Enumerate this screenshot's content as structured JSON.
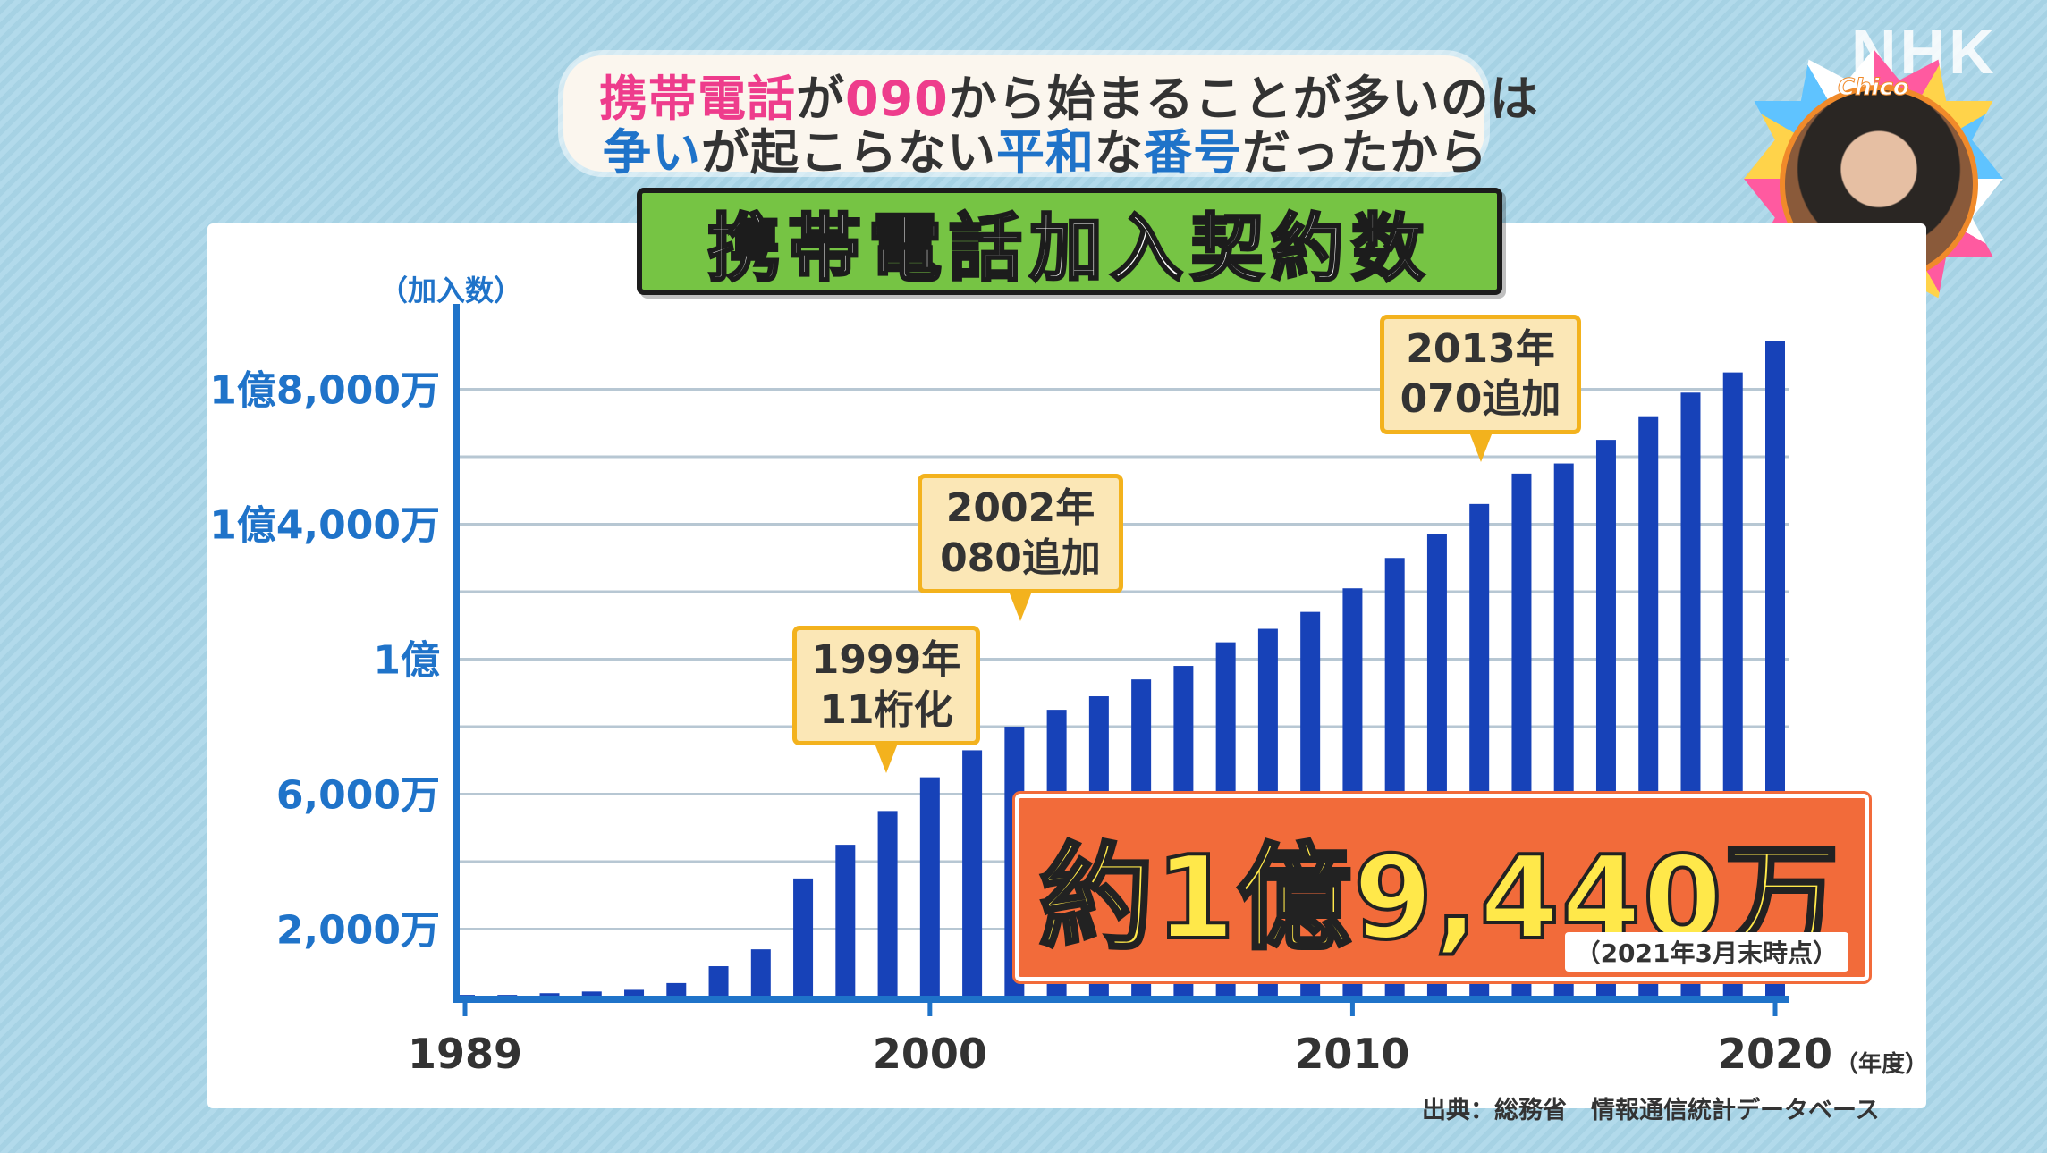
{
  "headline": {
    "line1": [
      {
        "text": "携帯電話",
        "color": "pink"
      },
      {
        "text": "が",
        "color": "dark"
      },
      {
        "text": "090",
        "color": "pink"
      },
      {
        "text": "から始まることが多いのは",
        "color": "dark"
      }
    ],
    "line2": [
      {
        "text": "争い",
        "color": "blue"
      },
      {
        "text": "が起こらない",
        "color": "dark"
      },
      {
        "text": "平和",
        "color": "blue"
      },
      {
        "text": "な",
        "color": "dark"
      },
      {
        "text": "番号",
        "color": "blue"
      },
      {
        "text": "だったから",
        "color": "dark"
      }
    ]
  },
  "broadcaster_logo": "NHK",
  "presenter_name": "Chico",
  "chart_data": {
    "type": "bar",
    "title": "携帯電話加入契約数",
    "ylabel": "（加入数）",
    "xunit": "（年度）",
    "x_range": [
      1989,
      2020
    ],
    "x_ticks": [
      {
        "value": 1989,
        "label": "1989"
      },
      {
        "value": 2000,
        "label": "2000"
      },
      {
        "value": 2010,
        "label": "2010"
      },
      {
        "value": 2020,
        "label": "2020"
      }
    ],
    "y_ticks": [
      {
        "value": 2000,
        "label": "2,000万"
      },
      {
        "value": 6000,
        "label": "6,000万"
      },
      {
        "value": 10000,
        "label": "1億"
      },
      {
        "value": 14000,
        "label": "1億4,000万"
      },
      {
        "value": 18000,
        "label": "1億8,000万"
      }
    ],
    "y_unit_note": "万",
    "ylim": [
      0,
      20000
    ],
    "grid": true,
    "bar_color": "#1742b8",
    "series": [
      {
        "x": [
          1989,
          1990,
          1991,
          1992,
          1993,
          1994,
          1995,
          1996,
          1997,
          1998,
          1999,
          2000,
          2001,
          2002,
          2003,
          2004,
          2005,
          2006,
          2007,
          2008,
          2009,
          2010,
          2011,
          2012,
          2013,
          2014,
          2015,
          2016,
          2017,
          2018,
          2019,
          2020
        ],
        "values": [
          50,
          50,
          100,
          150,
          200,
          400,
          900,
          1400,
          3500,
          4500,
          5500,
          6500,
          7300,
          8000,
          8500,
          8900,
          9400,
          9800,
          10500,
          10900,
          11400,
          12100,
          13000,
          13700,
          14600,
          15500,
          15800,
          16500,
          17200,
          17900,
          18500,
          19440
        ]
      }
    ],
    "annotations": [
      {
        "year": 1999,
        "line1": "1999年",
        "line2": "11桁化"
      },
      {
        "year": 2002,
        "line1": "2002年",
        "line2": "080追加"
      },
      {
        "year": 2013,
        "line1": "2013年",
        "line2": "070追加"
      }
    ],
    "total": {
      "text": "約1億9,440万",
      "note": "（2021年3月末時点）"
    },
    "source": "出典：総務省　情報通信統計データベース"
  }
}
